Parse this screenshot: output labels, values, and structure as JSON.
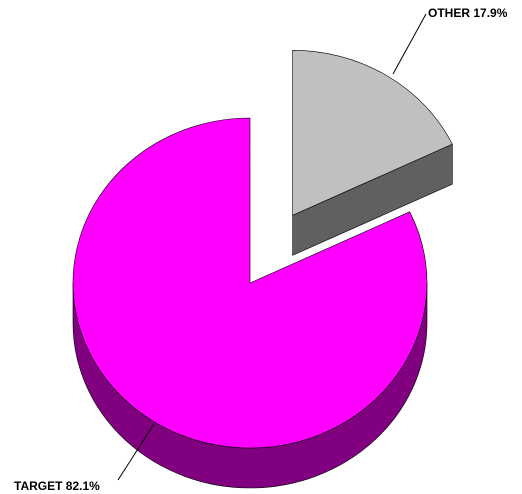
{
  "chart_data": {
    "type": "pie",
    "categories": [
      "OTHER",
      "TARGET"
    ],
    "values": [
      17.9,
      82.1
    ],
    "value_labels": [
      "17.9%",
      "82.1%"
    ],
    "colors": [
      "#c0c0c0",
      "#ff00ff"
    ],
    "side_colors": [
      "#606060",
      "#800080"
    ]
  }
}
